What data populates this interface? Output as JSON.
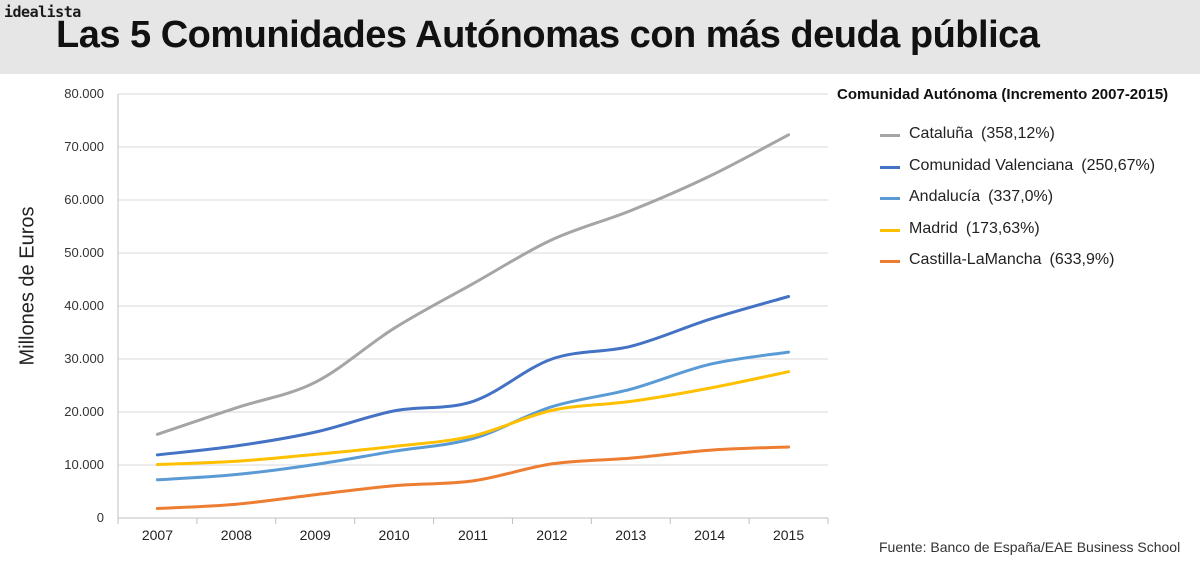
{
  "brand": "idealista",
  "legend_title": "Comunidad Autónoma (Incremento 2007-2015)",
  "source": "Fuente: Banco de España/EAE Business School",
  "chart_data": {
    "type": "line",
    "title": "Las 5 Comunidades Autónomas con más deuda pública",
    "xlabel": "",
    "ylabel": "Millones de Euros",
    "ylim": [
      0,
      80000
    ],
    "grid": true,
    "legend_position": "right",
    "x": [
      "2007",
      "2008",
      "2009",
      "2010",
      "2011",
      "2012",
      "2013",
      "2014",
      "2015"
    ],
    "y_ticks": [
      "0",
      "10.000",
      "20.000",
      "30.000",
      "40.000",
      "50.000",
      "60.000",
      "70.000",
      "80.000"
    ],
    "series": [
      {
        "name": "Cataluña",
        "increment": "(358,12%)",
        "color": "#a5a5a5",
        "values": [
          15800,
          20800,
          25600,
          35800,
          44200,
          52500,
          58000,
          64500,
          72300
        ]
      },
      {
        "name": "Comunidad Valenciana",
        "increment": "(250,67%)",
        "color": "#4472c4",
        "values": [
          11900,
          13600,
          16200,
          20200,
          22000,
          30000,
          32400,
          37500,
          41800
        ]
      },
      {
        "name": "Andalucía",
        "increment": "(337,0%)",
        "color": "#5b9bd5",
        "values": [
          7200,
          8200,
          10100,
          12600,
          15000,
          21000,
          24300,
          29000,
          31300
        ]
      },
      {
        "name": "Madrid",
        "increment": "(173,63%)",
        "color": "#ffc000",
        "values": [
          10100,
          10700,
          12000,
          13500,
          15500,
          20300,
          22000,
          24500,
          27600
        ]
      },
      {
        "name": "Castilla-LaMancha",
        "increment": "(633,9%)",
        "color": "#ed7d31",
        "values": [
          1800,
          2600,
          4400,
          6100,
          7000,
          10200,
          11300,
          12800,
          13400
        ]
      }
    ]
  }
}
